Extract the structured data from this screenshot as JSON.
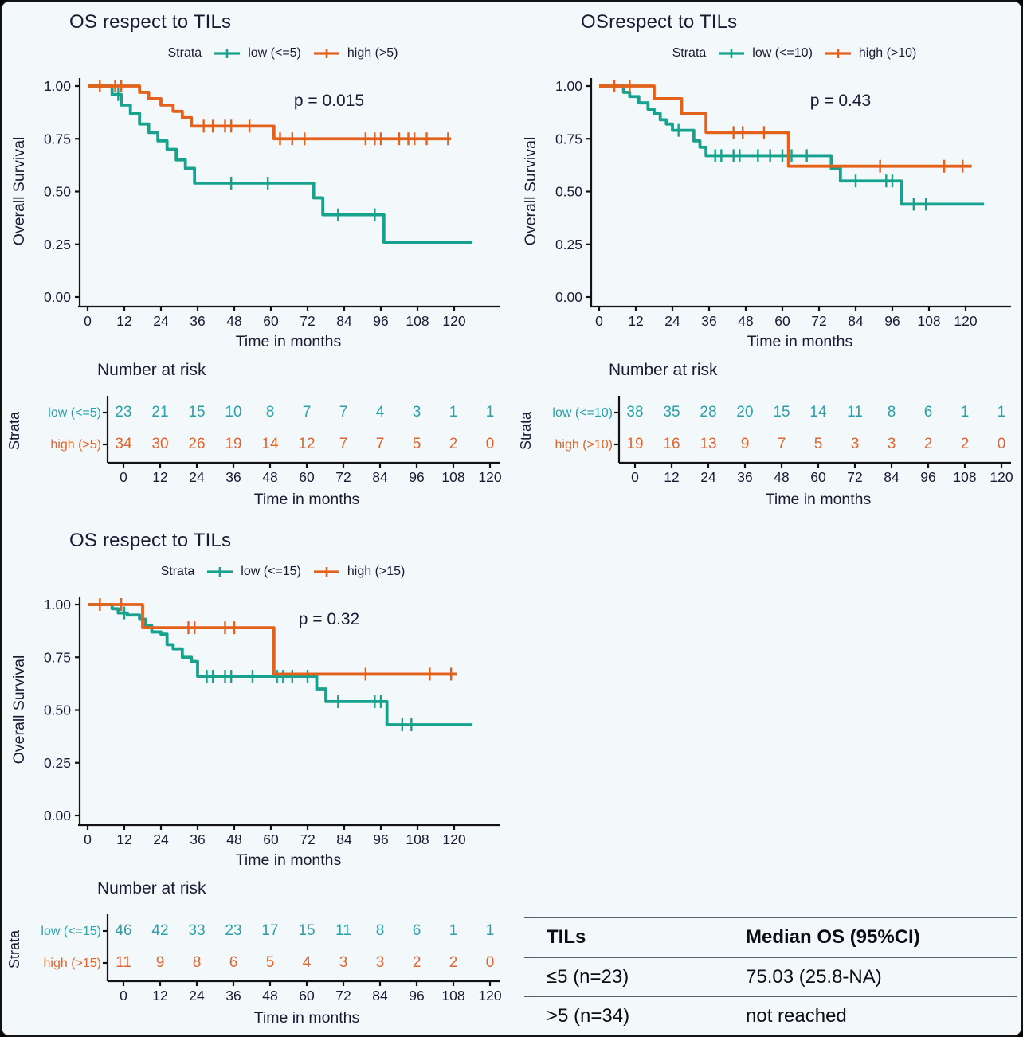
{
  "colors": {
    "low": "#16A28C",
    "high": "#E4611B",
    "low_text": "#2AA0A8",
    "high_text": "#E0642C",
    "dark": "#1B1A33",
    "axis": "#121212"
  },
  "chart_data": {
    "type": "line",
    "variant": "kaplan-meier-step",
    "x_domain": [
      0,
      126
    ],
    "y_domain": [
      0,
      1
    ],
    "grid": "off",
    "legend_position": "top",
    "panels": [
      {
        "title": "OS respect to TILs",
        "pvalue": "p = 0.015",
        "ylabel": "Overall Survival",
        "xlabel": "Time in months",
        "risk_title": "Number at risk",
        "strata_axis_label": "Strata",
        "legend": {
          "strata_label": "Strata",
          "low": "low (<=5)",
          "high": "high (>5)"
        },
        "yticks": [
          "1.00",
          "0.75",
          "0.50",
          "0.25",
          "0.00"
        ],
        "xticks": [
          0,
          12,
          24,
          36,
          48,
          60,
          72,
          84,
          96,
          108,
          120
        ],
        "series": [
          {
            "name": "low (<=5)",
            "color_key": "low",
            "end": 126,
            "steps": [
              [
                8,
                0.96
              ],
              [
                11,
                0.91
              ],
              [
                14,
                0.87
              ],
              [
                17,
                0.82
              ],
              [
                20,
                0.78
              ],
              [
                23,
                0.74
              ],
              [
                26,
                0.7
              ],
              [
                29,
                0.65
              ],
              [
                32,
                0.61
              ],
              [
                35,
                0.54
              ],
              [
                74,
                0.47
              ],
              [
                77,
                0.39
              ],
              [
                97,
                0.26
              ]
            ],
            "censors": [
              [
                10,
                0.96
              ],
              [
                47,
                0.54
              ],
              [
                59,
                0.54
              ],
              [
                82,
                0.39
              ],
              [
                94,
                0.39
              ]
            ]
          },
          {
            "name": "high (>5)",
            "color_key": "high",
            "end": 119,
            "steps": [
              [
                17,
                0.97
              ],
              [
                20,
                0.94
              ],
              [
                24,
                0.91
              ],
              [
                28,
                0.88
              ],
              [
                31,
                0.85
              ],
              [
                34,
                0.81
              ],
              [
                61,
                0.75
              ]
            ],
            "censors": [
              [
                4,
                1.0
              ],
              [
                9,
                1.0
              ],
              [
                11,
                1.0
              ],
              [
                38,
                0.81
              ],
              [
                41,
                0.81
              ],
              [
                45,
                0.81
              ],
              [
                47,
                0.81
              ],
              [
                53,
                0.81
              ],
              [
                63,
                0.75
              ],
              [
                67,
                0.75
              ],
              [
                71,
                0.75
              ],
              [
                91,
                0.75
              ],
              [
                94,
                0.75
              ],
              [
                96,
                0.75
              ],
              [
                102,
                0.75
              ],
              [
                105,
                0.75
              ],
              [
                107,
                0.75
              ],
              [
                111,
                0.75
              ],
              [
                118,
                0.75
              ]
            ]
          }
        ],
        "risk": {
          "rows": [
            {
              "label": "low (<=5)",
              "color_key": "low_text",
              "values": [
                23,
                21,
                15,
                10,
                8,
                7,
                7,
                4,
                3,
                1,
                1
              ]
            },
            {
              "label": "high (>5)",
              "color_key": "high_text",
              "values": [
                34,
                30,
                26,
                19,
                14,
                12,
                7,
                7,
                5,
                2,
                0
              ]
            }
          ]
        }
      },
      {
        "title": "OSrespect to TILs",
        "pvalue": "p = 0.43",
        "ylabel": "Overall Survival",
        "xlabel": "Time in months",
        "risk_title": "Number at risk",
        "strata_axis_label": "Strata",
        "legend": {
          "strata_label": "Strata",
          "low": "low (<=10)",
          "high": "high (>10)"
        },
        "yticks": [
          "1.00",
          "0.75",
          "0.50",
          "0.25",
          "0.00"
        ],
        "xticks": [
          0,
          12,
          24,
          36,
          48,
          60,
          72,
          84,
          96,
          108,
          120
        ],
        "series": [
          {
            "name": "low (<=10)",
            "color_key": "low",
            "end": 126,
            "steps": [
              [
                8,
                0.97
              ],
              [
                10,
                0.95
              ],
              [
                13,
                0.92
              ],
              [
                16,
                0.89
              ],
              [
                18,
                0.87
              ],
              [
                20,
                0.84
              ],
              [
                22,
                0.82
              ],
              [
                24,
                0.79
              ],
              [
                31,
                0.74
              ],
              [
                33,
                0.71
              ],
              [
                35,
                0.67
              ],
              [
                76,
                0.61
              ],
              [
                79,
                0.55
              ],
              [
                99,
                0.44
              ]
            ],
            "censors": [
              [
                26,
                0.79
              ],
              [
                38,
                0.67
              ],
              [
                40,
                0.67
              ],
              [
                44,
                0.67
              ],
              [
                46,
                0.67
              ],
              [
                52,
                0.67
              ],
              [
                56,
                0.67
              ],
              [
                60,
                0.67
              ],
              [
                63,
                0.67
              ],
              [
                68,
                0.67
              ],
              [
                84,
                0.55
              ],
              [
                94,
                0.55
              ],
              [
                96,
                0.55
              ],
              [
                103,
                0.44
              ],
              [
                107,
                0.44
              ]
            ]
          },
          {
            "name": "high (>10)",
            "color_key": "high",
            "end": 122,
            "steps": [
              [
                18,
                0.94
              ],
              [
                27,
                0.87
              ],
              [
                35,
                0.78
              ],
              [
                62,
                0.62
              ]
            ],
            "censors": [
              [
                5,
                1.0
              ],
              [
                10,
                1.0
              ],
              [
                44,
                0.78
              ],
              [
                47,
                0.78
              ],
              [
                54,
                0.78
              ],
              [
                92,
                0.62
              ],
              [
                113,
                0.62
              ],
              [
                119,
                0.62
              ]
            ]
          }
        ],
        "risk": {
          "rows": [
            {
              "label": "low (<=10)",
              "color_key": "low_text",
              "values": [
                38,
                35,
                28,
                20,
                15,
                14,
                11,
                8,
                6,
                1,
                1
              ]
            },
            {
              "label": "high (>10)",
              "color_key": "high_text",
              "values": [
                19,
                16,
                13,
                9,
                7,
                5,
                3,
                3,
                2,
                2,
                0
              ]
            }
          ]
        }
      },
      {
        "title": "OS respect to TILs",
        "pvalue": "p = 0.32",
        "ylabel": "Overall Survival",
        "xlabel": "Time in months",
        "risk_title": "Number at risk",
        "strata_axis_label": "Strata",
        "legend": {
          "strata_label": "Strata",
          "low": "low (<=15)",
          "high": "high (>15)"
        },
        "yticks": [
          "1.00",
          "0.75",
          "0.50",
          "0.25",
          "0.00"
        ],
        "xticks": [
          0,
          12,
          24,
          36,
          48,
          60,
          72,
          84,
          96,
          108,
          120
        ],
        "series": [
          {
            "name": "low (<=15)",
            "color_key": "low",
            "end": 126,
            "steps": [
              [
                8,
                0.98
              ],
              [
                10,
                0.96
              ],
              [
                13,
                0.95
              ],
              [
                17,
                0.93
              ],
              [
                19,
                0.9
              ],
              [
                21,
                0.87
              ],
              [
                24,
                0.86
              ],
              [
                26,
                0.81
              ],
              [
                28,
                0.79
              ],
              [
                31,
                0.75
              ],
              [
                34,
                0.73
              ],
              [
                36,
                0.66
              ],
              [
                75,
                0.6
              ],
              [
                78,
                0.54
              ],
              [
                98,
                0.43
              ]
            ],
            "censors": [
              [
                12,
                0.96
              ],
              [
                39,
                0.66
              ],
              [
                41,
                0.66
              ],
              [
                45,
                0.66
              ],
              [
                47,
                0.66
              ],
              [
                54,
                0.66
              ],
              [
                62,
                0.66
              ],
              [
                64,
                0.66
              ],
              [
                67,
                0.66
              ],
              [
                72,
                0.66
              ],
              [
                82,
                0.54
              ],
              [
                94,
                0.54
              ],
              [
                96,
                0.54
              ],
              [
                103,
                0.43
              ],
              [
                106,
                0.43
              ]
            ]
          },
          {
            "name": "high (>15)",
            "color_key": "high",
            "end": 121,
            "steps": [
              [
                18,
                0.89
              ],
              [
                61,
                0.67
              ]
            ],
            "censors": [
              [
                4,
                1.0
              ],
              [
                11,
                1.0
              ],
              [
                33,
                0.89
              ],
              [
                35,
                0.89
              ],
              [
                45,
                0.89
              ],
              [
                48,
                0.89
              ],
              [
                91,
                0.67
              ],
              [
                112,
                0.67
              ],
              [
                119,
                0.67
              ]
            ]
          }
        ],
        "risk": {
          "rows": [
            {
              "label": "low (<=15)",
              "color_key": "low_text",
              "values": [
                46,
                42,
                33,
                23,
                17,
                15,
                11,
                8,
                6,
                1,
                1
              ]
            },
            {
              "label": "high (>15)",
              "color_key": "high_text",
              "values": [
                11,
                9,
                8,
                6,
                5,
                4,
                3,
                3,
                2,
                2,
                0
              ]
            }
          ]
        }
      }
    ]
  },
  "summary_table": {
    "headers": [
      "TILs",
      "Median OS (95%CI)"
    ],
    "rows": [
      [
        "≤5 (n=23)",
        "75.03 (25.8-NA)"
      ],
      [
        ">5 (n=34)",
        "not reached"
      ]
    ]
  }
}
